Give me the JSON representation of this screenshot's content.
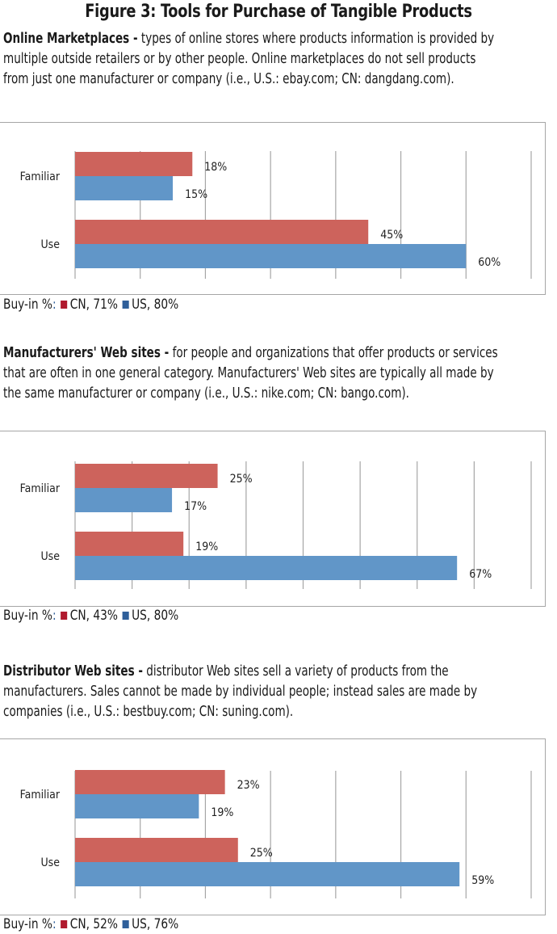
{
  "figure_title": "Figure 3: Tools for Purchase of Tangible Products",
  "colors": {
    "cn_bar": "#cd635c",
    "us_bar": "#6196c8",
    "cn_legend": "#b01a2e",
    "us_legend": "#2f5f9a",
    "gridline": "#a6a6a6"
  },
  "sections": [
    {
      "heading": "Online Marketplaces -",
      "description": " types of online stores where products information is provided by multiple outside retailers or by other people. Online marketplaces do not sell products from just one manufacturer or company (i.e., U.S.: ebay.com; CN: dangdang.com).",
      "legend": {
        "prefix": "Buy-in %",
        "colon": ":",
        "cn": "CN, 71%",
        "us": "US, 80%"
      }
    },
    {
      "heading": "Manufacturers' Web sites -",
      "description": " for people and organizations that offer products or services that are often in one general category. Manufacturers' Web sites are typically all made by the same manufacturer or company (i.e., U.S.: nike.com; CN: bango.com).",
      "legend": {
        "prefix": "Buy-in %",
        "colon": ":",
        "cn": "CN, 43%",
        "us": "US, 80%"
      }
    },
    {
      "heading": "Distributor Web sites -",
      "description": " distributor Web sites sell a variety of products from the manufacturers. Sales cannot be made by individual people; instead sales are made by companies (i.e., U.S.: bestbuy.com; CN: suning.com).",
      "legend": {
        "prefix": "Buy-in %",
        "colon": ":",
        "cn": "CN, 52%",
        "us": "US, 76%"
      }
    }
  ],
  "chart_data": [
    {
      "type": "bar",
      "orientation": "horizontal",
      "title": "Online Marketplaces",
      "categories": [
        "Familiar",
        "Use"
      ],
      "series": [
        {
          "name": "CN",
          "values": [
            18,
            45
          ],
          "labels": [
            "18%",
            "45%"
          ]
        },
        {
          "name": "US",
          "values": [
            15,
            60
          ],
          "labels": [
            "15%",
            "60%"
          ]
        }
      ],
      "xlim": [
        0,
        70
      ],
      "grid_step": 10,
      "grid": true,
      "legend": "bottom-left",
      "legend_entries": [
        "CN, 71%",
        "US, 80%"
      ]
    },
    {
      "type": "bar",
      "orientation": "horizontal",
      "title": "Manufacturers' Web sites",
      "categories": [
        "Familiar",
        "Use"
      ],
      "series": [
        {
          "name": "CN",
          "values": [
            25,
            19
          ],
          "labels": [
            "25%",
            "19%"
          ]
        },
        {
          "name": "US",
          "values": [
            17,
            67
          ],
          "labels": [
            "17%",
            "67%"
          ]
        }
      ],
      "xlim": [
        0,
        80
      ],
      "grid_step": 10,
      "grid": true,
      "legend": "bottom-left",
      "legend_entries": [
        "CN, 43%",
        "US, 80%"
      ]
    },
    {
      "type": "bar",
      "orientation": "horizontal",
      "title": "Distributor Web sites",
      "categories": [
        "Familiar",
        "Use"
      ],
      "series": [
        {
          "name": "CN",
          "values": [
            23,
            25
          ],
          "labels": [
            "23%",
            "25%"
          ]
        },
        {
          "name": "US",
          "values": [
            19,
            59
          ],
          "labels": [
            "19%",
            "59%"
          ]
        }
      ],
      "xlim": [
        0,
        70
      ],
      "grid_step": 10,
      "grid": true,
      "legend": "bottom-left",
      "legend_entries": [
        "CN, 52%",
        "US, 76%"
      ]
    }
  ]
}
